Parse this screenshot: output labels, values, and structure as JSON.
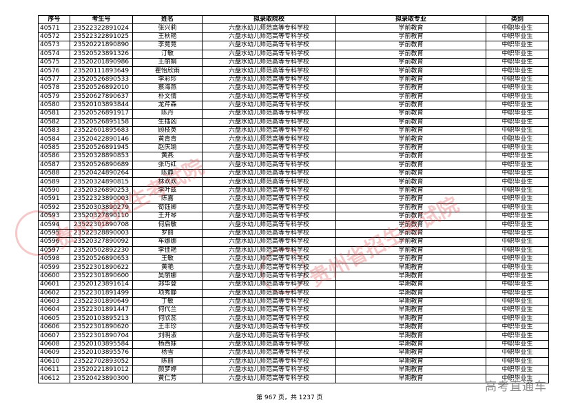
{
  "headers": [
    "序号",
    "考生号",
    "姓名",
    "拟录取院校",
    "拟录取专业",
    "类别"
  ],
  "rows": [
    [
      "40571",
      "23522322891024",
      "张兴莉",
      "六盘水幼儿师范高等专科学校",
      "学前教育",
      "中职毕业生"
    ],
    [
      "40572",
      "23522322891025",
      "王秋艳",
      "六盘水幼儿师范高等专科学校",
      "学前教育",
      "中职毕业生"
    ],
    [
      "40573",
      "23520221890890",
      "李竞竞",
      "六盘水幼儿师范高等专科学校",
      "学前教育",
      "中职毕业生"
    ],
    [
      "40574",
      "23520523891326",
      "汀敏",
      "六盘水幼儿师范高等专科学校",
      "学前教育",
      "中职毕业生"
    ],
    [
      "40575",
      "23520201890986",
      "王丽娟",
      "六盘水幼儿师范高等专科学校",
      "学前教育",
      "中职毕业生"
    ],
    [
      "40576",
      "23520111893649",
      "瞿怡欣雨",
      "六盘水幼儿师范高等专科学校",
      "学前教育",
      "中职毕业生"
    ],
    [
      "40577",
      "23520526890533",
      "李彩珍",
      "六盘水幼儿师范高等专科学校",
      "学前教育",
      "中职毕业生"
    ],
    [
      "40578",
      "23520526892010",
      "蔡海燕",
      "六盘水幼儿师范高等专科学校",
      "学前教育",
      "中职毕业生"
    ],
    [
      "40579",
      "23520627890637",
      "朴文倩",
      "六盘水幼儿师范高等专科学校",
      "学前教育",
      "中职毕业生"
    ],
    [
      "40580",
      "23520103893844",
      "龙芹森",
      "六盘水幼儿师范高等专科学校",
      "学前教育",
      "中职毕业生"
    ],
    [
      "40581",
      "23520526891917",
      "陈丹",
      "六盘水幼儿师范高等专科学校",
      "学前教育",
      "中职毕业生"
    ],
    [
      "40582",
      "23520526895158",
      "生插凶",
      "六盘水幼儿师范高等专科学校",
      "学前教育",
      "中职毕业生"
    ],
    [
      "40583",
      "23522601895683",
      "顾枝英",
      "六盘水幼儿师范高等专科学校",
      "学前教育",
      "中职毕业生"
    ],
    [
      "40584",
      "23520422890146",
      "黄青青",
      "六盘水幼儿师范高等专科学校",
      "学前教育",
      "中职毕业生"
    ],
    [
      "40585",
      "23520526891945",
      "赵庆瑜",
      "六盘水幼儿师范高等专科学校",
      "学前教育",
      "中职毕业生"
    ],
    [
      "40586",
      "23520328890853",
      "黄燕",
      "六盘水幼儿师范高等专科学校",
      "学前教育",
      "中职毕业生"
    ],
    [
      "40587",
      "23520526890689",
      "张巧红",
      "六盘水幼儿师范高等专科学校",
      "学前教育",
      "中职毕业生"
    ],
    [
      "40588",
      "23520424890264",
      "陈静",
      "六盘水幼儿师范高等专科学校",
      "学前教育",
      "中职毕业生"
    ],
    [
      "40589",
      "23520324890815",
      "林欢欢",
      "六盘水幼儿师范高等专科学校",
      "学前教育",
      "中职毕业生"
    ],
    [
      "40590",
      "23520326890253",
      "李叶兹",
      "六盘水幼儿师范高等专科学校",
      "学前教育",
      "中职毕业生"
    ],
    [
      "40591",
      "23522323890003",
      "陈嘉",
      "六盘水幼儿师范高等专科学校",
      "学前教育",
      "中职毕业生"
    ],
    [
      "40592",
      "23520303890279",
      "荀钰卿",
      "六盘水幼儿师范高等专科学校",
      "学前教育",
      "中职毕业生"
    ],
    [
      "40593",
      "23520327890110",
      "王开琴",
      "六盘水幼儿师范高等专科学校",
      "学前教育",
      "中职毕业生"
    ],
    [
      "40594",
      "23522301890708",
      "何启敏",
      "六盘水幼儿师范高等专科学校",
      "学前教育",
      "中职毕业生"
    ],
    [
      "40595",
      "23522328890003",
      "罗丽",
      "六盘水幼儿师范高等专科学校",
      "学前教育",
      "中职毕业生"
    ],
    [
      "40596",
      "23520327890092",
      "车娜娜",
      "六盘水幼儿师范高等专科学校",
      "学前教育",
      "中职毕业生"
    ],
    [
      "40597",
      "23520502892230",
      "李佳艳",
      "六盘水幼儿师范高等专科学校",
      "学前教育",
      "中职毕业生"
    ],
    [
      "40598",
      "23520526890653",
      "王敏",
      "六盘水幼儿师范高等专科学校",
      "学前教育",
      "中职毕业生"
    ],
    [
      "40599",
      "23522301890622",
      "黄艳",
      "六盘水幼儿师范高等专科学校",
      "早期教育",
      "中职毕业生"
    ],
    [
      "40600",
      "23522301890600",
      "吴丽娜",
      "六盘水幼儿师范高等专科学校",
      "早期教育",
      "中职毕业生"
    ],
    [
      "40601",
      "23520123891614",
      "郑华登",
      "六盘水幼儿师范高等专科学校",
      "早期教育",
      "中职毕业生"
    ],
    [
      "40602",
      "23522301891499",
      "项秀静",
      "六盘水幼儿师范高等专科学校",
      "早期教育",
      "中职毕业生"
    ],
    [
      "40603",
      "23522301890649",
      "丁敏",
      "六盘水幼儿师范高等专科学校",
      "早期教育",
      "中职毕业生"
    ],
    [
      "40604",
      "23522301891447",
      "何代兰",
      "六盘水幼儿师范高等专科学校",
      "早期教育",
      "中职毕业生"
    ],
    [
      "40605",
      "23520103895213",
      "何欣蕊",
      "六盘水幼儿师范高等专科学校",
      "早期教育",
      "中职毕业生"
    ],
    [
      "40606",
      "23522301890620",
      "王丰珍",
      "六盘水幼儿师范高等专科学校",
      "早期教育",
      "中职毕业生"
    ],
    [
      "40607",
      "23522301890704",
      "刘明淑",
      "六盘水幼儿师范高等专科学校",
      "早期教育",
      "中职毕业生"
    ],
    [
      "40608",
      "23520103895584",
      "杨西妹",
      "六盘水幼儿师范高等专科学校",
      "早期教育",
      "中职毕业生"
    ],
    [
      "40609",
      "23520103895576",
      "杨雪",
      "六盘水幼儿师范高等专科学校",
      "早期教育",
      "中职毕业生"
    ],
    [
      "40610",
      "23522702893052",
      "陈丽",
      "六盘水幼儿师范高等专科学校",
      "早期教育",
      "中职毕业生"
    ],
    [
      "40611",
      "23520221891012",
      "颜梦婷",
      "六盘水幼儿师范高等专科学校",
      "早期教育",
      "中职毕业生"
    ],
    [
      "40612",
      "23520423890300",
      "黄仁芳",
      "六盘水幼儿师范高等专科学校",
      "早期教育",
      "中职毕业生"
    ]
  ],
  "watermark": "贵州省招生考试院",
  "footer": "第 967 页，共 1237 页",
  "logo": "高考直通车",
  "colors": {
    "watermark": "#dc3c3c",
    "logo": "#8a8a8a"
  }
}
